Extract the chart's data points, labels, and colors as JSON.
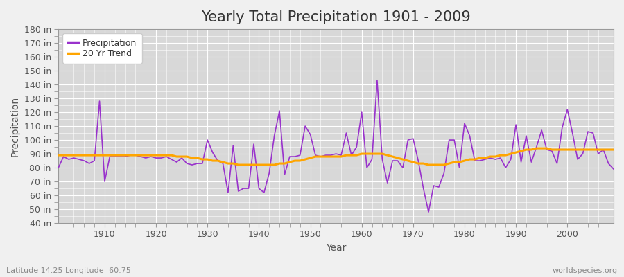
{
  "title": "Yearly Total Precipitation 1901 - 2009",
  "xlabel": "Year",
  "ylabel": "Precipitation",
  "subtitle": "Latitude 14.25 Longitude -60.75",
  "credit": "worldspecies.org",
  "years": [
    1901,
    1902,
    1903,
    1904,
    1905,
    1906,
    1907,
    1908,
    1909,
    1910,
    1911,
    1912,
    1913,
    1914,
    1915,
    1916,
    1917,
    1918,
    1919,
    1920,
    1921,
    1922,
    1923,
    1924,
    1925,
    1926,
    1927,
    1928,
    1929,
    1930,
    1931,
    1932,
    1933,
    1934,
    1935,
    1936,
    1937,
    1938,
    1939,
    1940,
    1941,
    1942,
    1943,
    1944,
    1945,
    1946,
    1947,
    1948,
    1949,
    1950,
    1951,
    1952,
    1953,
    1954,
    1955,
    1956,
    1957,
    1958,
    1959,
    1960,
    1961,
    1962,
    1963,
    1964,
    1965,
    1966,
    1967,
    1968,
    1969,
    1970,
    1971,
    1972,
    1973,
    1974,
    1975,
    1976,
    1977,
    1978,
    1979,
    1980,
    1981,
    1982,
    1983,
    1984,
    1985,
    1986,
    1987,
    1988,
    1989,
    1990,
    1991,
    1992,
    1993,
    1994,
    1995,
    1996,
    1997,
    1998,
    1999,
    2000,
    2001,
    2002,
    2003,
    2004,
    2005,
    2006,
    2007,
    2008,
    2009
  ],
  "precipitation": [
    80,
    88,
    86,
    87,
    86,
    85,
    83,
    85,
    128,
    70,
    88,
    88,
    88,
    88,
    89,
    89,
    88,
    87,
    88,
    87,
    87,
    88,
    86,
    84,
    87,
    83,
    82,
    83,
    83,
    100,
    91,
    85,
    83,
    62,
    96,
    63,
    65,
    65,
    97,
    65,
    62,
    76,
    103,
    121,
    75,
    88,
    88,
    89,
    110,
    104,
    89,
    88,
    89,
    89,
    90,
    89,
    105,
    89,
    95,
    120,
    80,
    86,
    143,
    86,
    69,
    85,
    85,
    80,
    100,
    101,
    85,
    65,
    48,
    67,
    66,
    76,
    100,
    100,
    80,
    112,
    103,
    85,
    85,
    86,
    87,
    86,
    87,
    80,
    86,
    111,
    84,
    103,
    84,
    95,
    107,
    93,
    92,
    83,
    109,
    122,
    105,
    86,
    90,
    106,
    105,
    90,
    93,
    83,
    79
  ],
  "trend": [
    89,
    89,
    89,
    89,
    89,
    89,
    89,
    89,
    89,
    89,
    89,
    89,
    89,
    89,
    89,
    89,
    89,
    89,
    89,
    89,
    89,
    89,
    89,
    88,
    88,
    88,
    87,
    87,
    86,
    86,
    85,
    85,
    84,
    83,
    83,
    82,
    82,
    82,
    82,
    82,
    82,
    82,
    82,
    83,
    83,
    84,
    85,
    85,
    86,
    87,
    88,
    88,
    88,
    88,
    88,
    88,
    89,
    89,
    89,
    90,
    90,
    90,
    90,
    90,
    89,
    88,
    87,
    86,
    85,
    84,
    83,
    83,
    82,
    82,
    82,
    82,
    83,
    84,
    84,
    85,
    86,
    86,
    87,
    87,
    88,
    88,
    89,
    89,
    90,
    91,
    92,
    93,
    93,
    94,
    94,
    94,
    93,
    93,
    93,
    93,
    93,
    93,
    93,
    93,
    93,
    93,
    93,
    93,
    93
  ],
  "precip_color": "#9932CC",
  "trend_color": "#FFA500",
  "fig_bg_color": "#f0f0f0",
  "plot_bg_color": "#d8d8d8",
  "grid_color": "#ffffff",
  "ylim": [
    40,
    180
  ],
  "yticks": [
    40,
    50,
    60,
    70,
    80,
    90,
    100,
    110,
    120,
    130,
    140,
    150,
    160,
    170,
    180
  ],
  "xticks": [
    1910,
    1920,
    1930,
    1940,
    1950,
    1960,
    1970,
    1980,
    1990,
    2000
  ],
  "xlim": [
    1901,
    2009
  ],
  "title_fontsize": 15,
  "axis_label_fontsize": 10,
  "tick_fontsize": 9,
  "legend_fontsize": 9,
  "subtitle_fontsize": 8,
  "credit_fontsize": 8
}
